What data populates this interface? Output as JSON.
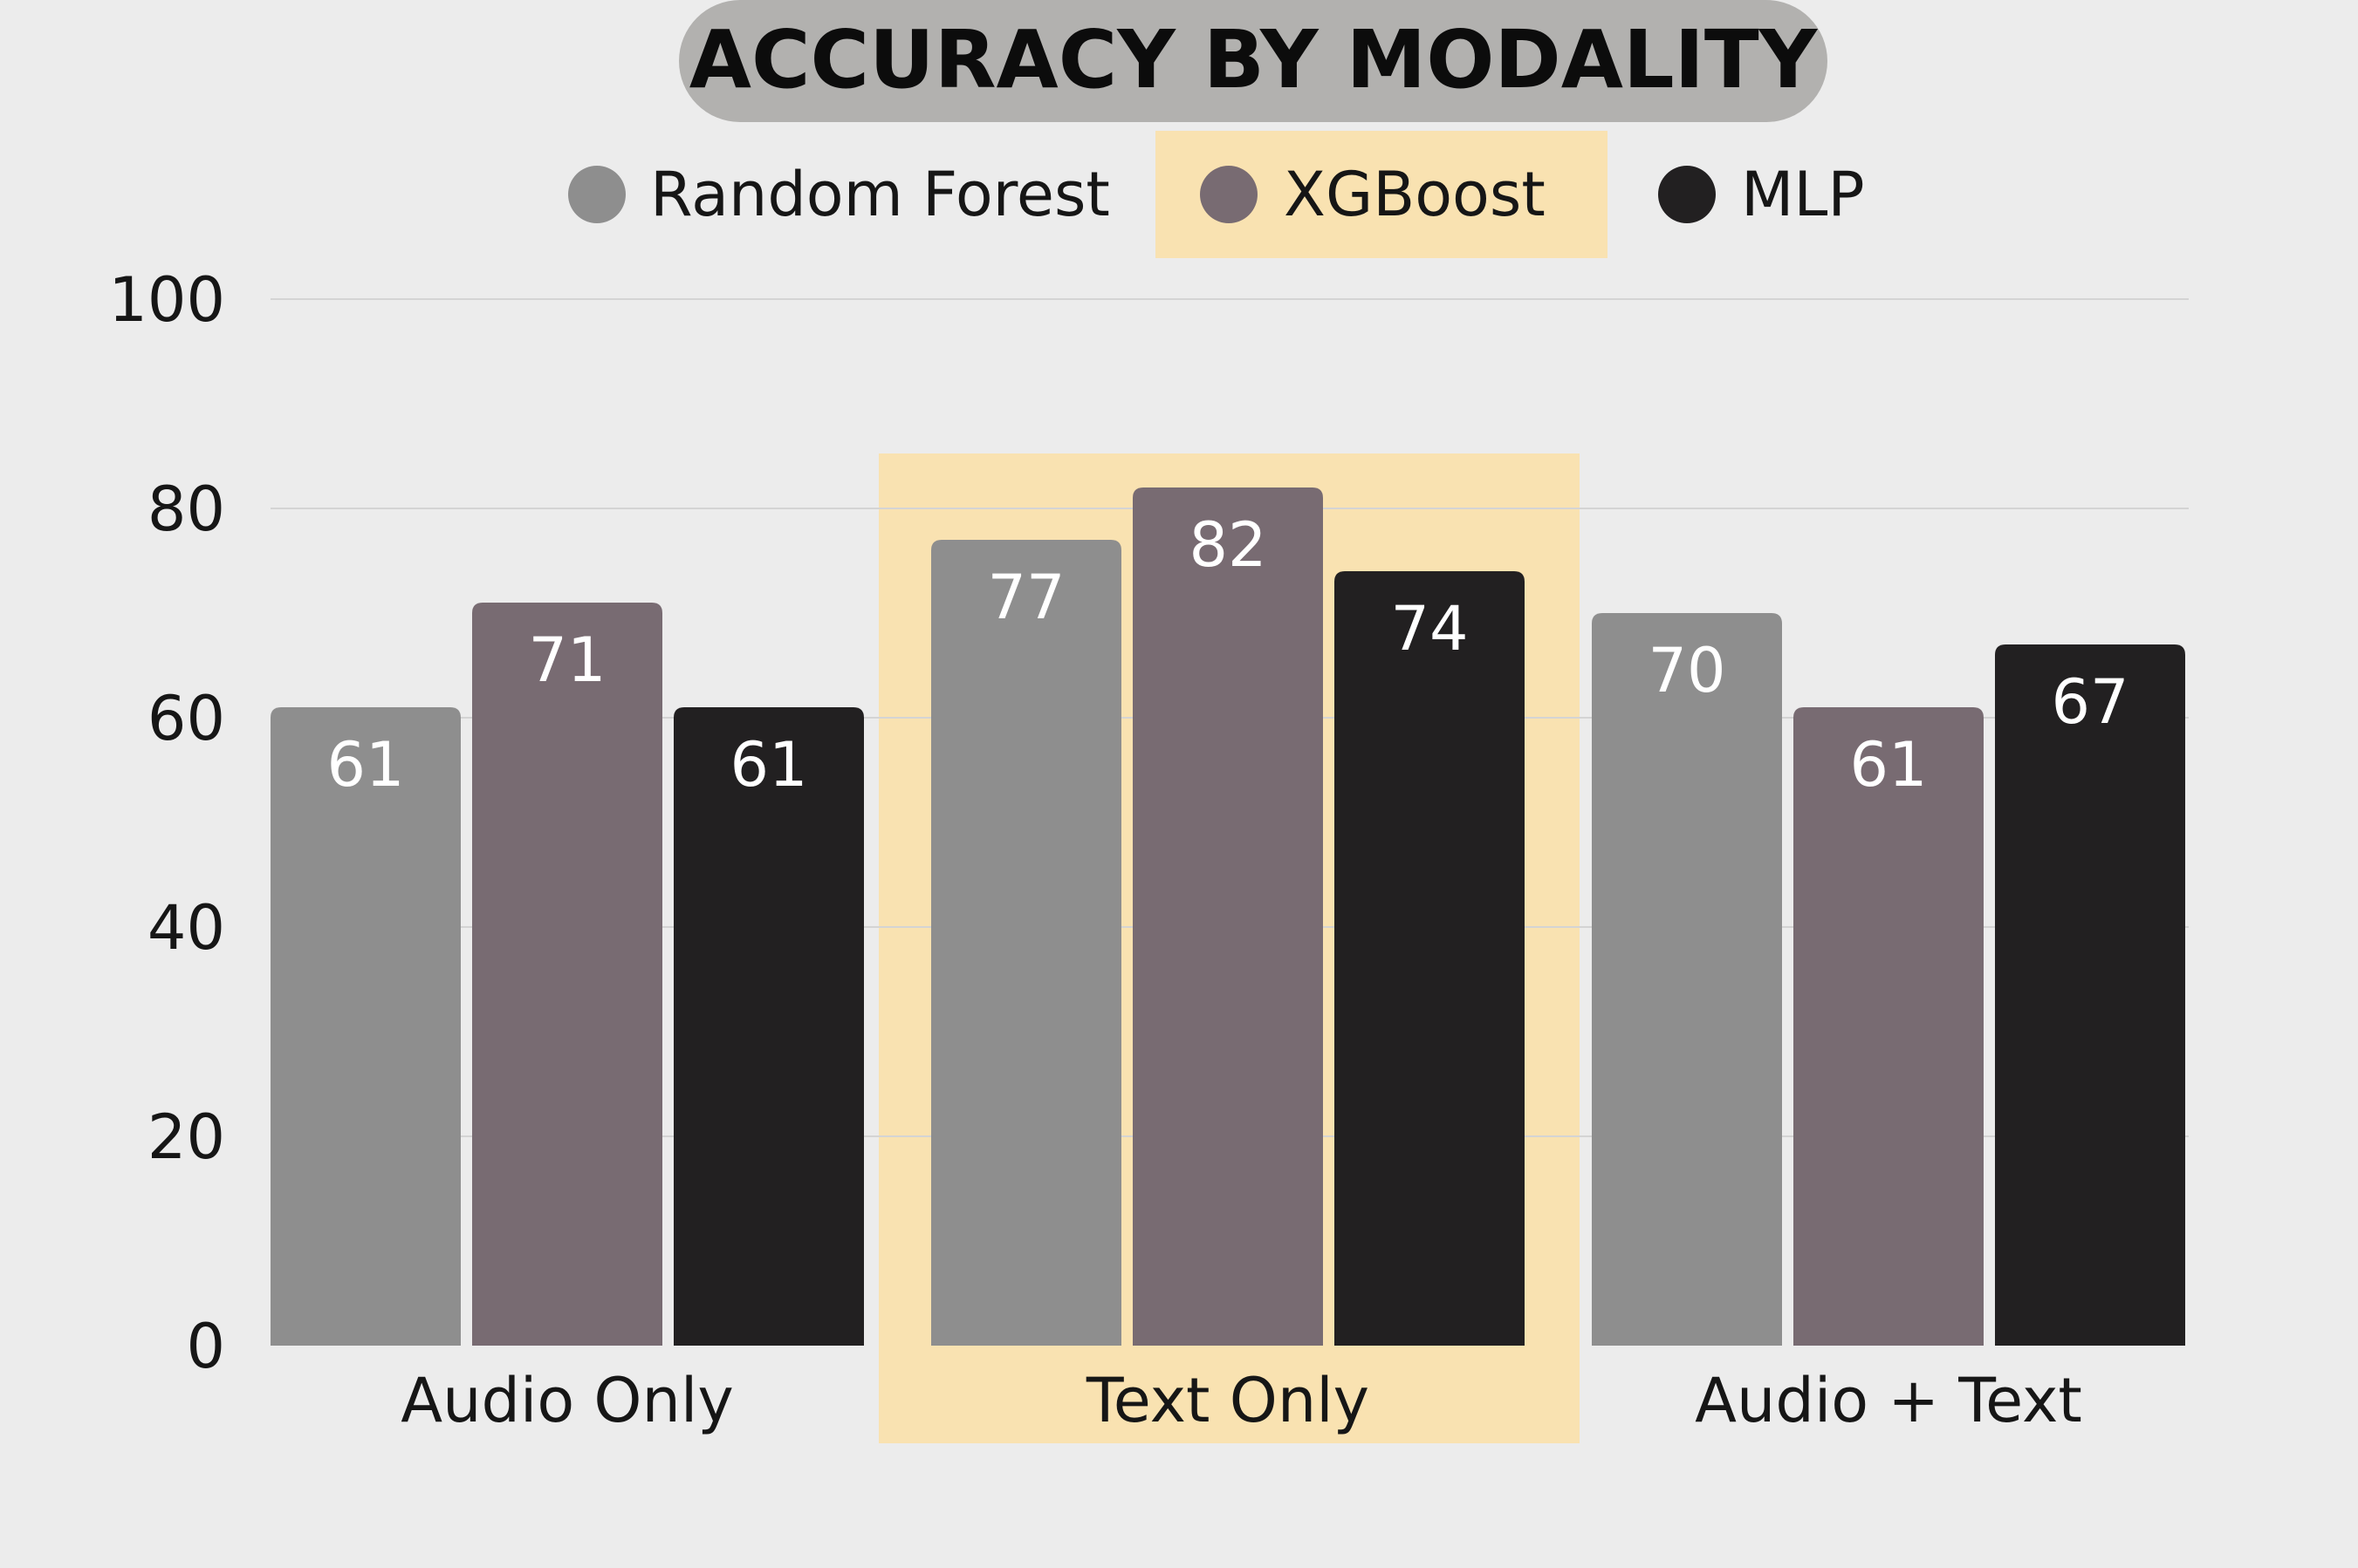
{
  "chart_data": {
    "type": "bar",
    "title": "ACCURACY BY MODALITY",
    "categories": [
      "Audio Only",
      "Text Only",
      "Audio + Text"
    ],
    "series": [
      {
        "name": "Random Forest",
        "values": [
          61,
          77,
          70
        ],
        "color": "#8e8e8e"
      },
      {
        "name": "XGBoost",
        "values": [
          71,
          82,
          61
        ],
        "color": "#786b72"
      },
      {
        "name": "MLP",
        "values": [
          61,
          74,
          67
        ],
        "color": "#222021"
      }
    ],
    "y_ticks": [
      "0",
      "20",
      "40",
      "60",
      "80",
      "100"
    ],
    "ylim": [
      0,
      100
    ],
    "xlabel": "",
    "ylabel": "",
    "grid": true,
    "legend_position": "top",
    "highlighted_category": "Text Only",
    "highlighted_series": "XGBoost",
    "colors": {
      "background": "#ececec",
      "highlight": "#f9e2b1",
      "title_pill": "#b2b1af",
      "gridline": "#d4d4d4"
    }
  }
}
